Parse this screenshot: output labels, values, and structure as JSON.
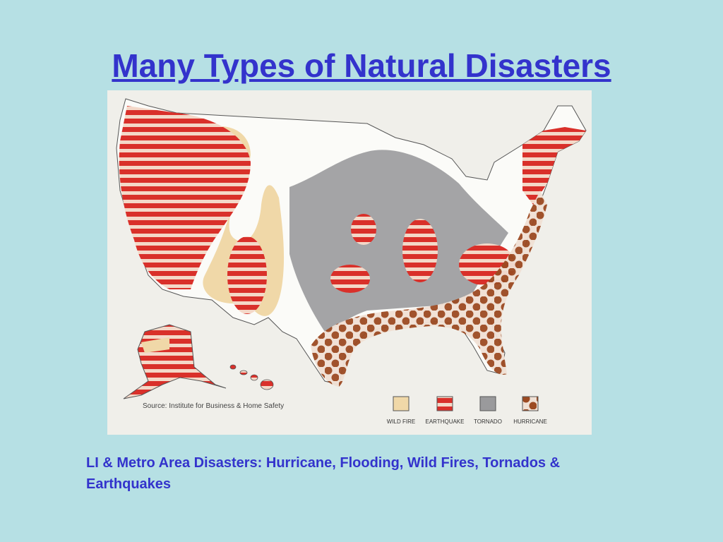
{
  "title": "Many Types of Natural Disasters",
  "map": {
    "source": "Source: Institute for Business & Home Safety",
    "legend": [
      {
        "label": "WILD FIRE"
      },
      {
        "label": "EARTHQUAKE"
      },
      {
        "label": "TORNADO"
      },
      {
        "label": "HURRICANE"
      }
    ]
  },
  "caption": "LI & Metro Area Disasters: Hurricane, Flooding, Wild Fires, Tornados & Earthquakes"
}
